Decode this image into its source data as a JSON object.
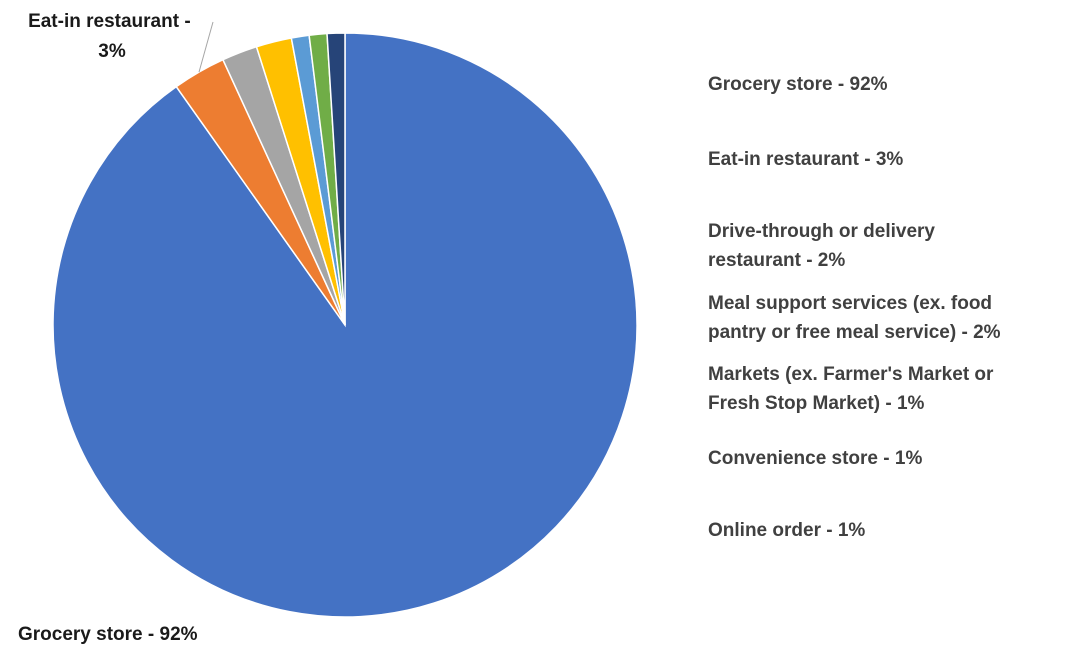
{
  "chart_data": {
    "type": "pie",
    "title": "",
    "series": [
      {
        "values": [
          92,
          3,
          2,
          2,
          1,
          1,
          1
        ],
        "slices": [
          {
            "label": "Grocery store",
            "value": 92,
            "legend_text": "Grocery store - 92%",
            "color": "#4472C4"
          },
          {
            "label": "Eat-in restaurant",
            "value": 3,
            "legend_text": "Eat-in restaurant - 3%",
            "color": "#ED7D31"
          },
          {
            "label": "Drive-through or delivery restaurant",
            "value": 2,
            "legend_lines": [
              "Drive-through or delivery",
              "restaurant - 2%"
            ],
            "color": "#A5A5A5"
          },
          {
            "label": "Meal support services (ex.  food pantry or free meal service)",
            "value": 2,
            "legend_lines": [
              "Meal support services (ex.  food",
              "pantry or free meal service) - 2%"
            ],
            "color": "#FFC000"
          },
          {
            "label": "Markets (ex. Farmer's Market or Fresh Stop Market)",
            "value": 1,
            "legend_lines": [
              "Markets (ex. Farmer's Market or",
              "Fresh Stop Market) - 1%"
            ],
            "color": "#5B9BD5"
          },
          {
            "label": "Convenience store",
            "value": 1,
            "legend_text": "Convenience store - 1%",
            "color": "#70AD47"
          },
          {
            "label": "Online order",
            "value": 1,
            "legend_text": "Online order - 1%",
            "color": "#264478"
          }
        ]
      }
    ],
    "data_labels": [
      {
        "lines": [
          "Eat-in restaurant -",
          "3%"
        ]
      },
      {
        "lines": [
          "Grocery store - 92%"
        ]
      }
    ],
    "legend_position": "right"
  }
}
